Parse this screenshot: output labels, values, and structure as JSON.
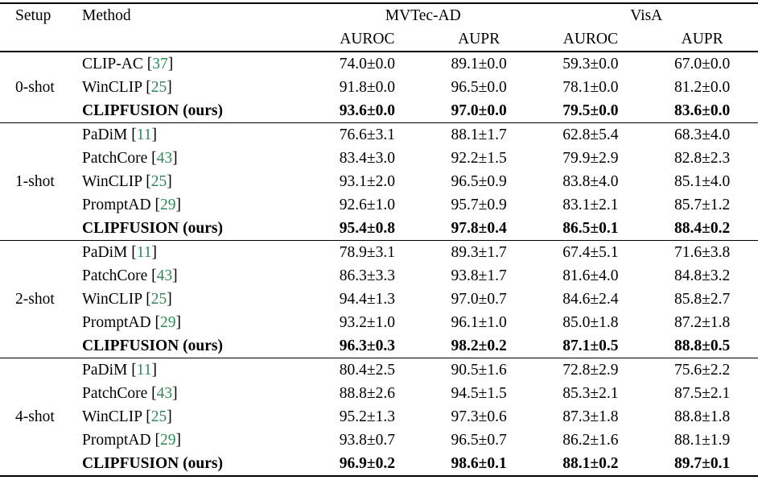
{
  "page": {
    "background": "#ffffff",
    "text_color": "#000000"
  },
  "table": {
    "headers": {
      "setup": "Setup",
      "method": "Method",
      "metric_auroc": "AUROC",
      "metric_aupr": "AUPR"
    },
    "column_groups": [
      {
        "label": "MVTec-AD"
      },
      {
        "label": "VisA"
      }
    ],
    "colors": {
      "citation": "#2E8B57",
      "text": "#000000",
      "rule": "#000000"
    },
    "groups": [
      {
        "setup": "0-shot",
        "rows": [
          {
            "method": "CLIP-AC",
            "cite": "37",
            "bold": false,
            "values": [
              "74.0±0.0",
              "89.1±0.0",
              "59.3±0.0",
              "67.0±0.0"
            ]
          },
          {
            "method": "WinCLIP",
            "cite": "25",
            "bold": false,
            "values": [
              "91.8±0.0",
              "96.5±0.0",
              "78.1±0.0",
              "81.2±0.0"
            ]
          },
          {
            "method": "CLIPFUSION (ours)",
            "cite": "",
            "bold": true,
            "values": [
              "93.6±0.0",
              "97.0±0.0",
              "79.5±0.0",
              "83.6±0.0"
            ]
          }
        ]
      },
      {
        "setup": "1-shot",
        "rows": [
          {
            "method": "PaDiM",
            "cite": "11",
            "bold": false,
            "values": [
              "76.6±3.1",
              "88.1±1.7",
              "62.8±5.4",
              "68.3±4.0"
            ]
          },
          {
            "method": "PatchCore",
            "cite": "43",
            "bold": false,
            "values": [
              "83.4±3.0",
              "92.2±1.5",
              "79.9±2.9",
              "82.8±2.3"
            ]
          },
          {
            "method": "WinCLIP",
            "cite": "25",
            "bold": false,
            "values": [
              "93.1±2.0",
              "96.5±0.9",
              "83.8±4.0",
              "85.1±4.0"
            ]
          },
          {
            "method": "PromptAD",
            "cite": "29",
            "bold": false,
            "values": [
              "92.6±1.0",
              "95.7±0.9",
              "83.1±2.1",
              "85.7±1.2"
            ]
          },
          {
            "method": "CLIPFUSION (ours)",
            "cite": "",
            "bold": true,
            "values": [
              "95.4±0.8",
              "97.8±0.4",
              "86.5±0.1",
              "88.4±0.2"
            ]
          }
        ]
      },
      {
        "setup": "2-shot",
        "rows": [
          {
            "method": "PaDiM",
            "cite": "11",
            "bold": false,
            "values": [
              "78.9±3.1",
              "89.3±1.7",
              "67.4±5.1",
              "71.6±3.8"
            ]
          },
          {
            "method": "PatchCore",
            "cite": "43",
            "bold": false,
            "values": [
              "86.3±3.3",
              "93.8±1.7",
              "81.6±4.0",
              "84.8±3.2"
            ]
          },
          {
            "method": "WinCLIP",
            "cite": "25",
            "bold": false,
            "values": [
              "94.4±1.3",
              "97.0±0.7",
              "84.6±2.4",
              "85.8±2.7"
            ]
          },
          {
            "method": "PromptAD",
            "cite": "29",
            "bold": false,
            "values": [
              "93.2±1.0",
              "96.1±1.0",
              "85.0±1.8",
              "87.2±1.8"
            ]
          },
          {
            "method": "CLIPFUSION (ours)",
            "cite": "",
            "bold": true,
            "values": [
              "96.3±0.3",
              "98.2±0.2",
              "87.1±0.5",
              "88.8±0.5"
            ]
          }
        ]
      },
      {
        "setup": "4-shot",
        "rows": [
          {
            "method": "PaDiM",
            "cite": "11",
            "bold": false,
            "values": [
              "80.4±2.5",
              "90.5±1.6",
              "72.8±2.9",
              "75.6±2.2"
            ]
          },
          {
            "method": "PatchCore",
            "cite": "43",
            "bold": false,
            "values": [
              "88.8±2.6",
              "94.5±1.5",
              "85.3±2.1",
              "87.5±2.1"
            ]
          },
          {
            "method": "WinCLIP",
            "cite": "25",
            "bold": false,
            "values": [
              "95.2±1.3",
              "97.3±0.6",
              "87.3±1.8",
              "88.8±1.8"
            ]
          },
          {
            "method": "PromptAD",
            "cite": "29",
            "bold": false,
            "values": [
              "93.8±0.7",
              "96.5±0.7",
              "86.2±1.6",
              "88.1±1.9"
            ]
          },
          {
            "method": "CLIPFUSION (ours)",
            "cite": "",
            "bold": true,
            "values": [
              "96.9±0.2",
              "98.6±0.1",
              "88.1±0.2",
              "89.7±0.1"
            ]
          }
        ]
      }
    ]
  }
}
